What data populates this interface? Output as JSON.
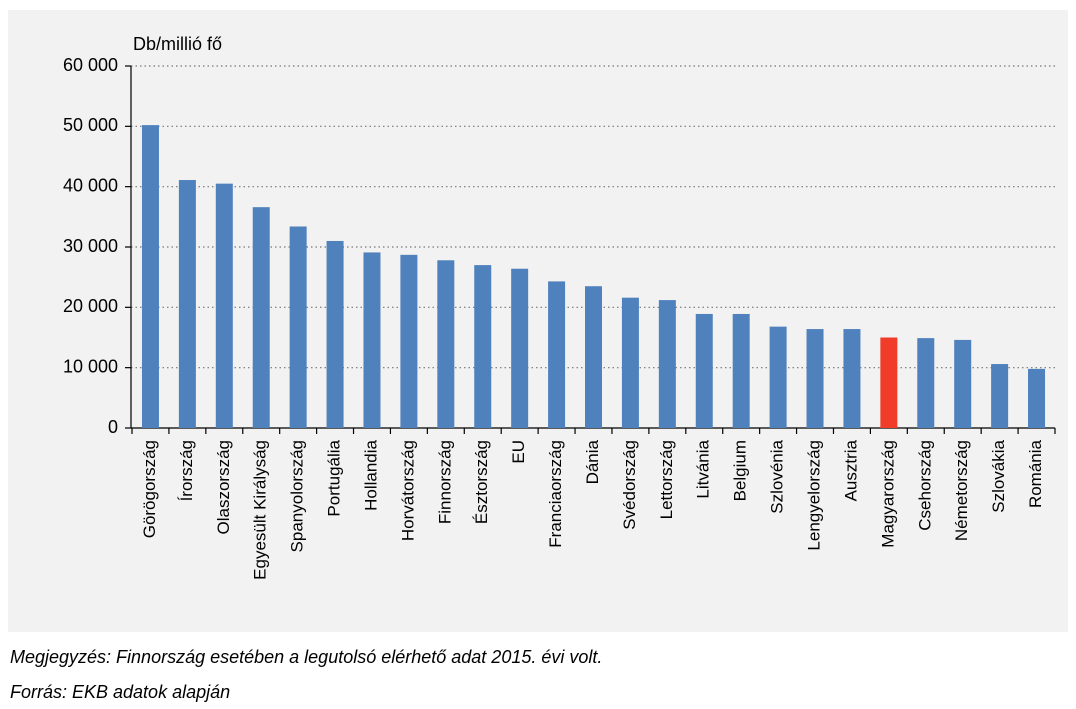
{
  "chart_data": {
    "type": "bar",
    "y_axis_label": "Db/millió fő",
    "categories": [
      "Görögország",
      "Írország",
      "Olaszország",
      "Egyesült Királyság",
      "Spanyolország",
      "Portugália",
      "Hollandia",
      "Horvátország",
      "Finnország",
      "Észtország",
      "EU",
      "Franciaország",
      "Dánia",
      "Svédország",
      "Lettország",
      "Litvánia",
      "Belgium",
      "Szlovénia",
      "Lengyelország",
      "Ausztria",
      "Magyarország",
      "Csehország",
      "Németország",
      "Szlovákia",
      "Románia"
    ],
    "values": [
      50200,
      41100,
      40500,
      36600,
      33400,
      31000,
      29100,
      28700,
      27800,
      27000,
      26400,
      24300,
      23500,
      21600,
      21200,
      18900,
      18900,
      16800,
      16400,
      16400,
      15000,
      14900,
      14600,
      10600,
      9800
    ],
    "colors": [
      "#4f81bd",
      "#4f81bd",
      "#4f81bd",
      "#4f81bd",
      "#4f81bd",
      "#4f81bd",
      "#4f81bd",
      "#4f81bd",
      "#4f81bd",
      "#4f81bd",
      "#4f81bd",
      "#4f81bd",
      "#4f81bd",
      "#4f81bd",
      "#4f81bd",
      "#4f81bd",
      "#4f81bd",
      "#4f81bd",
      "#4f81bd",
      "#4f81bd",
      "#f03c28",
      "#4f81bd",
      "#4f81bd",
      "#4f81bd",
      "#4f81bd"
    ],
    "ylim": [
      0,
      60000
    ],
    "yticks": [
      0,
      {
        "value": 10000,
        "label": "10 000"
      },
      {
        "value": 20000,
        "label": "20 000"
      },
      {
        "value": 30000,
        "label": "30 000"
      },
      {
        "value": 40000,
        "label": "40 000"
      },
      {
        "value": 50000,
        "label": "50 000"
      },
      {
        "value": 60000,
        "label": "60 000"
      }
    ],
    "grid": true
  },
  "notes": [
    "Megjegyzés: Finnország esetében a legutolsó elérhető adat 2015. évi volt.",
    "Forrás: EKB adatok alapján"
  ]
}
